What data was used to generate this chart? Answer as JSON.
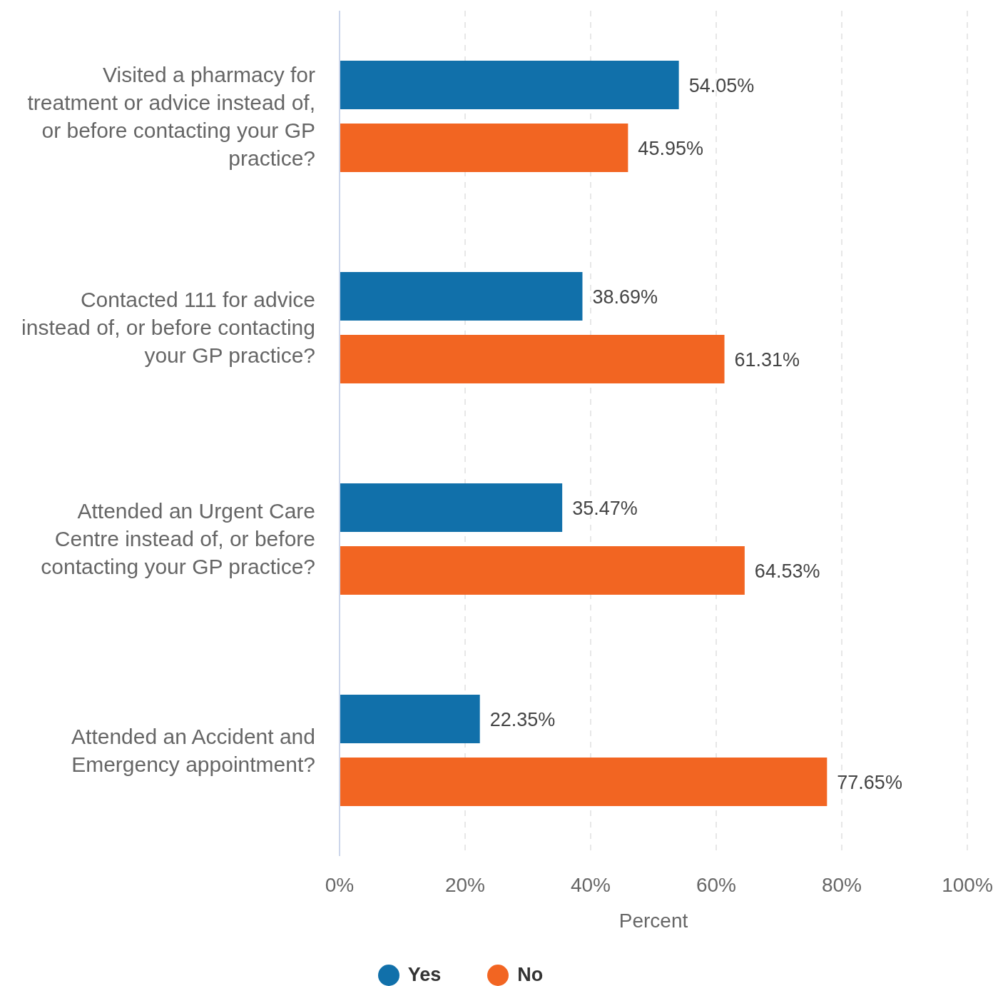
{
  "chart_data": {
    "type": "bar",
    "orientation": "horizontal",
    "categories": [
      "Visited a pharmacy for treatment or advice instead of, or before contacting your GP practice?",
      "Contacted 111 for advice instead of, or before contacting your GP practice?",
      "Attended an Urgent Care Centre instead of, or before contacting your GP practice?",
      "Attended an Accident and Emergency appointment?"
    ],
    "series": [
      {
        "name": "Yes",
        "color": "#1170aa",
        "values": [
          54.05,
          38.69,
          35.47,
          22.35
        ],
        "value_labels": [
          "54.05%",
          "38.69%",
          "35.47%",
          "22.35%"
        ]
      },
      {
        "name": "No",
        "color": "#f26522",
        "values": [
          45.95,
          61.31,
          64.53,
          77.65
        ],
        "value_labels": [
          "45.95%",
          "61.31%",
          "64.53%",
          "77.65%"
        ]
      }
    ],
    "xlim": [
      0,
      100
    ],
    "xticks": [
      {
        "value": 0,
        "label": "0%"
      },
      {
        "value": 20,
        "label": "20%"
      },
      {
        "value": 40,
        "label": "40%"
      },
      {
        "value": 60,
        "label": "60%"
      },
      {
        "value": 80,
        "label": "80%"
      },
      {
        "value": 100,
        "label": "100%"
      }
    ],
    "xlabel": "Percent",
    "grid": "x",
    "legend": "bottom"
  }
}
